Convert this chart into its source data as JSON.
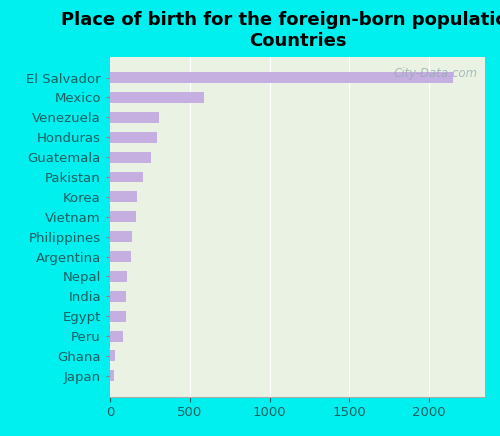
{
  "title": "Place of birth for the foreign-born population -\nCountries",
  "categories": [
    "El Salvador",
    "Mexico",
    "Venezuela",
    "Honduras",
    "Guatemala",
    "Pakistan",
    "Korea",
    "Vietnam",
    "Philippines",
    "Argentina",
    "Nepal",
    "India",
    "Egypt",
    "Peru",
    "Ghana",
    "Japan"
  ],
  "values": [
    2150,
    590,
    310,
    295,
    255,
    205,
    170,
    165,
    135,
    130,
    108,
    103,
    98,
    82,
    33,
    28
  ],
  "bar_color": "#c5aee0",
  "background_chart": "#eaf2e3",
  "background_fig": "#00f0f0",
  "xlim": [
    0,
    2350
  ],
  "xticks": [
    0,
    500,
    1000,
    1500,
    2000
  ],
  "title_fontsize": 13,
  "label_fontsize": 9.5,
  "tick_fontsize": 9.5,
  "label_color": "#1a6060",
  "watermark": "City-Data.com"
}
